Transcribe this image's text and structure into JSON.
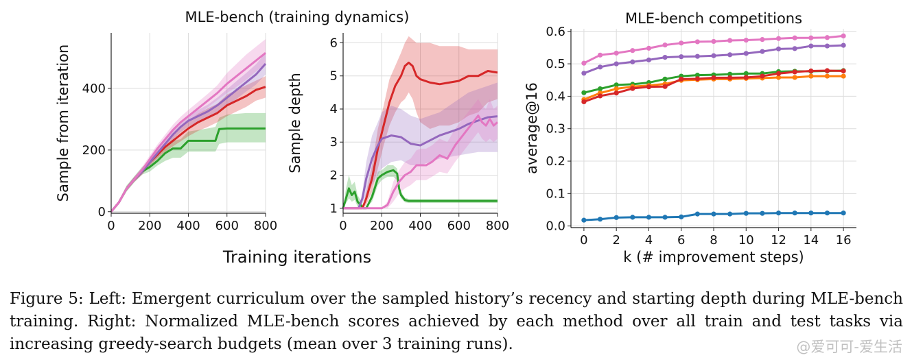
{
  "left_title": "MLE-bench (training dynamics)",
  "shared_xlabel": "Training iterations",
  "caption": "Figure 5: Left: Emergent curriculum over the sampled history’s recency and starting depth during MLE-bench training. Right: Normalized MLE-bench scores achieved by each method over all train and test tasks via increasing greedy-search budgets (mean over 3 training runs).",
  "watermark": "@爱可可-爱生活",
  "colors": {
    "red": "#d62728",
    "purple": "#9467bd",
    "pink": "#e377c2",
    "green": "#2ca02c",
    "orange": "#ff7f0e",
    "blue": "#1f77b4"
  },
  "chart_data": [
    {
      "id": "recency",
      "type": "line",
      "title": "",
      "xlabel": "",
      "ylabel": "Sample from iteration",
      "xlim": [
        0,
        800
      ],
      "ylim": [
        -5,
        580
      ],
      "xticks": [
        0,
        200,
        400,
        600,
        800
      ],
      "yticks": [
        0,
        200,
        400
      ],
      "grid": true,
      "series": [
        {
          "color": "green",
          "x": [
            0,
            40,
            80,
            120,
            160,
            200,
            240,
            280,
            320,
            360,
            400,
            450,
            500,
            540,
            560,
            600,
            700,
            800
          ],
          "y": [
            0,
            30,
            75,
            105,
            130,
            145,
            165,
            190,
            205,
            205,
            230,
            230,
            230,
            230,
            268,
            270,
            270,
            270
          ],
          "lo": [
            0,
            25,
            65,
            95,
            120,
            130,
            150,
            165,
            175,
            175,
            195,
            195,
            195,
            195,
            220,
            225,
            225,
            225
          ],
          "hi": [
            0,
            35,
            85,
            115,
            145,
            165,
            185,
            210,
            230,
            235,
            260,
            265,
            270,
            275,
            305,
            315,
            320,
            320
          ]
        },
        {
          "color": "red",
          "x": [
            0,
            40,
            80,
            120,
            160,
            200,
            240,
            280,
            320,
            360,
            400,
            450,
            500,
            550,
            600,
            650,
            700,
            750,
            800
          ],
          "y": [
            0,
            30,
            75,
            105,
            130,
            160,
            185,
            210,
            230,
            250,
            270,
            290,
            305,
            320,
            345,
            360,
            375,
            395,
            405
          ],
          "lo": [
            0,
            25,
            68,
            97,
            120,
            150,
            172,
            195,
            212,
            228,
            245,
            262,
            275,
            290,
            310,
            325,
            340,
            360,
            370
          ],
          "hi": [
            0,
            35,
            82,
            113,
            140,
            170,
            198,
            225,
            248,
            272,
            295,
            318,
            335,
            350,
            380,
            395,
            410,
            425,
            440
          ]
        },
        {
          "color": "purple",
          "x": [
            0,
            40,
            80,
            120,
            160,
            200,
            240,
            280,
            320,
            360,
            400,
            450,
            500,
            550,
            600,
            650,
            700,
            750,
            800
          ],
          "y": [
            0,
            30,
            75,
            105,
            130,
            160,
            190,
            220,
            250,
            275,
            295,
            310,
            325,
            345,
            370,
            395,
            420,
            445,
            480
          ],
          "lo": [
            0,
            25,
            68,
            97,
            120,
            150,
            178,
            206,
            234,
            258,
            276,
            290,
            303,
            320,
            343,
            366,
            390,
            412,
            445
          ],
          "hi": [
            0,
            35,
            82,
            113,
            140,
            170,
            202,
            234,
            266,
            292,
            314,
            330,
            347,
            370,
            397,
            424,
            450,
            478,
            515
          ]
        },
        {
          "color": "pink",
          "x": [
            0,
            40,
            80,
            120,
            160,
            200,
            240,
            280,
            320,
            360,
            400,
            450,
            500,
            550,
            600,
            650,
            700,
            750,
            800
          ],
          "y": [
            0,
            30,
            75,
            105,
            135,
            170,
            205,
            235,
            265,
            290,
            310,
            335,
            360,
            385,
            415,
            440,
            465,
            490,
            515
          ],
          "lo": [
            0,
            25,
            68,
            97,
            125,
            158,
            192,
            220,
            248,
            272,
            291,
            315,
            338,
            362,
            385,
            405,
            428,
            455,
            480
          ],
          "hi": [
            0,
            35,
            82,
            113,
            145,
            182,
            218,
            250,
            282,
            308,
            330,
            356,
            382,
            410,
            450,
            480,
            510,
            535,
            560
          ]
        }
      ]
    },
    {
      "id": "depth",
      "type": "line",
      "title": "",
      "xlabel": "",
      "ylabel": "Sample depth",
      "xlim": [
        0,
        800
      ],
      "ylim": [
        0.85,
        6.3
      ],
      "xticks": [
        0,
        200,
        400,
        600,
        800
      ],
      "yticks": [
        1,
        2,
        3,
        4,
        5,
        6
      ],
      "grid": true,
      "series": [
        {
          "color": "green",
          "x": [
            0,
            15,
            30,
            45,
            60,
            75,
            90,
            105,
            120,
            150,
            180,
            200,
            230,
            260,
            280,
            290,
            300,
            320,
            340,
            400,
            500,
            600,
            700,
            800
          ],
          "y": [
            1.0,
            1.3,
            1.6,
            1.4,
            1.5,
            1.2,
            1.1,
            1.0,
            1.0,
            1.35,
            1.9,
            2.0,
            2.1,
            2.15,
            2.05,
            1.6,
            1.4,
            1.25,
            1.22,
            1.22,
            1.22,
            1.22,
            1.22,
            1.22
          ],
          "lo": [
            1.0,
            1.15,
            1.3,
            1.2,
            1.25,
            1.05,
            1.0,
            1.0,
            1.0,
            1.2,
            1.7,
            1.85,
            1.95,
            1.95,
            1.85,
            1.45,
            1.3,
            1.18,
            1.16,
            1.16,
            1.16,
            1.16,
            1.16,
            1.16
          ],
          "hi": [
            1.0,
            1.6,
            2.0,
            1.7,
            1.8,
            1.4,
            1.25,
            1.05,
            1.0,
            1.5,
            2.1,
            2.15,
            2.3,
            2.3,
            2.2,
            1.75,
            1.5,
            1.32,
            1.28,
            1.28,
            1.28,
            1.28,
            1.28,
            1.28
          ]
        },
        {
          "color": "red",
          "x": [
            0,
            100,
            120,
            150,
            180,
            210,
            240,
            270,
            300,
            320,
            340,
            360,
            380,
            400,
            450,
            500,
            550,
            600,
            650,
            700,
            750,
            800
          ],
          "y": [
            1.0,
            1.0,
            1.3,
            1.9,
            2.8,
            3.5,
            4.2,
            4.7,
            5.0,
            5.3,
            5.4,
            5.3,
            5.0,
            4.9,
            4.8,
            4.75,
            4.8,
            4.85,
            5.0,
            5.0,
            5.15,
            5.1
          ],
          "lo": [
            1.0,
            1.0,
            1.1,
            1.5,
            2.2,
            2.9,
            3.5,
            3.9,
            4.2,
            4.3,
            4.5,
            4.3,
            3.9,
            3.6,
            3.4,
            3.5,
            3.5,
            3.6,
            3.8,
            3.9,
            4.2,
            4.3
          ],
          "hi": [
            1.0,
            1.0,
            1.5,
            2.3,
            3.4,
            4.1,
            4.9,
            5.3,
            5.7,
            6.0,
            6.2,
            6.1,
            6.0,
            6.0,
            6.0,
            5.9,
            5.9,
            5.9,
            5.8,
            5.8,
            5.8,
            5.8
          ]
        },
        {
          "color": "purple",
          "x": [
            0,
            80,
            100,
            120,
            150,
            180,
            200,
            250,
            300,
            350,
            400,
            450,
            500,
            550,
            600,
            650,
            700,
            750,
            800
          ],
          "y": [
            1.0,
            1.0,
            1.3,
            1.9,
            2.5,
            2.9,
            3.1,
            3.2,
            3.15,
            2.95,
            2.9,
            3.05,
            3.2,
            3.3,
            3.4,
            3.55,
            3.65,
            3.75,
            3.78
          ],
          "lo": [
            1.0,
            1.0,
            1.15,
            1.4,
            1.7,
            2.0,
            2.2,
            2.4,
            2.45,
            2.3,
            2.3,
            2.4,
            2.5,
            2.55,
            2.6,
            2.65,
            2.7,
            2.7,
            2.7
          ],
          "hi": [
            1.0,
            1.0,
            1.5,
            2.4,
            3.2,
            3.6,
            3.9,
            4.1,
            4.0,
            3.8,
            3.7,
            3.8,
            3.9,
            4.1,
            4.3,
            4.5,
            4.6,
            4.7,
            4.8
          ]
        },
        {
          "color": "pink",
          "x": [
            0,
            200,
            230,
            260,
            290,
            320,
            350,
            380,
            400,
            430,
            460,
            500,
            540,
            580,
            620,
            660,
            700,
            720,
            740,
            760,
            780,
            800
          ],
          "y": [
            1.0,
            1.0,
            1.1,
            1.5,
            1.8,
            2.0,
            2.1,
            2.3,
            2.3,
            2.3,
            2.4,
            2.6,
            2.5,
            2.9,
            3.2,
            3.5,
            3.8,
            3.6,
            3.5,
            3.7,
            3.5,
            3.6
          ],
          "lo": [
            1.0,
            1.0,
            1.0,
            1.2,
            1.45,
            1.6,
            1.7,
            1.85,
            1.85,
            1.85,
            1.95,
            2.1,
            2.05,
            2.4,
            2.7,
            3.0,
            3.3,
            3.1,
            3.0,
            3.1,
            3.0,
            3.1
          ],
          "hi": [
            1.0,
            1.0,
            1.2,
            1.8,
            2.15,
            2.4,
            2.5,
            2.75,
            2.8,
            2.8,
            2.9,
            3.1,
            3.0,
            3.4,
            3.7,
            4.0,
            4.3,
            4.1,
            4.0,
            4.3,
            4.0,
            4.1
          ]
        }
      ]
    },
    {
      "id": "competitions",
      "type": "line",
      "title": "MLE-bench competitions",
      "xlabel": "k (# improvement steps)",
      "ylabel": "average@16",
      "xlim": [
        -0.8,
        16.8
      ],
      "ylim": [
        -0.005,
        0.608
      ],
      "xticks": [
        0,
        2,
        4,
        6,
        8,
        10,
        12,
        14,
        16
      ],
      "yticks": [
        0.0,
        0.1,
        0.2,
        0.3,
        0.4,
        0.5,
        0.6
      ],
      "grid": true,
      "series": [
        {
          "color": "pink",
          "x": [
            0,
            1,
            2,
            3,
            4,
            5,
            6,
            7,
            8,
            9,
            10,
            11,
            12,
            13,
            14,
            15,
            16
          ],
          "y": [
            0.502,
            0.527,
            0.533,
            0.541,
            0.548,
            0.558,
            0.564,
            0.568,
            0.569,
            0.572,
            0.573,
            0.575,
            0.578,
            0.58,
            0.58,
            0.581,
            0.586
          ]
        },
        {
          "color": "purple",
          "x": [
            0,
            1,
            2,
            3,
            4,
            5,
            6,
            7,
            8,
            9,
            10,
            11,
            12,
            13,
            14,
            15,
            16
          ],
          "y": [
            0.471,
            0.49,
            0.5,
            0.506,
            0.512,
            0.52,
            0.522,
            0.523,
            0.525,
            0.528,
            0.532,
            0.538,
            0.546,
            0.547,
            0.555,
            0.555,
            0.557
          ]
        },
        {
          "color": "green",
          "x": [
            0,
            1,
            2,
            3,
            4,
            5,
            6,
            7,
            8,
            9,
            10,
            11,
            12,
            13,
            14,
            15,
            16
          ],
          "y": [
            0.411,
            0.423,
            0.435,
            0.437,
            0.442,
            0.453,
            0.462,
            0.465,
            0.466,
            0.468,
            0.47,
            0.47,
            0.476,
            0.477,
            0.477,
            0.478,
            0.479
          ]
        },
        {
          "color": "orange",
          "x": [
            0,
            1,
            2,
            3,
            4,
            5,
            6,
            7,
            8,
            9,
            10,
            11,
            12,
            13,
            14,
            15,
            16
          ],
          "y": [
            0.39,
            0.41,
            0.423,
            0.43,
            0.433,
            0.438,
            0.449,
            0.451,
            0.453,
            0.453,
            0.455,
            0.456,
            0.458,
            0.458,
            0.462,
            0.462,
            0.462
          ]
        },
        {
          "color": "red",
          "x": [
            0,
            1,
            2,
            3,
            4,
            5,
            6,
            7,
            8,
            9,
            10,
            11,
            12,
            13,
            14,
            15,
            16
          ],
          "y": [
            0.383,
            0.401,
            0.41,
            0.424,
            0.429,
            0.43,
            0.453,
            0.454,
            0.457,
            0.457,
            0.458,
            0.462,
            0.47,
            0.475,
            0.478,
            0.479,
            0.478
          ]
        },
        {
          "color": "blue",
          "x": [
            0,
            1,
            2,
            3,
            4,
            5,
            6,
            7,
            8,
            9,
            10,
            11,
            12,
            13,
            14,
            15,
            16
          ],
          "y": [
            0.018,
            0.021,
            0.026,
            0.027,
            0.027,
            0.027,
            0.028,
            0.037,
            0.037,
            0.037,
            0.039,
            0.039,
            0.04,
            0.04,
            0.04,
            0.04,
            0.04
          ]
        }
      ]
    }
  ]
}
